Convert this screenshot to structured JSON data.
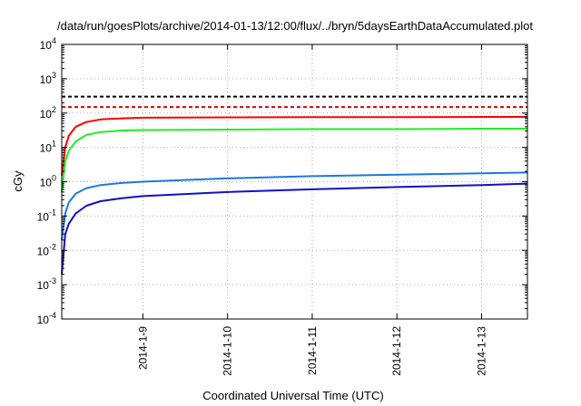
{
  "chart_data": {
    "type": "line",
    "title": "/data/run/goesPlots/archive/2014-01-13/12:00/flux/../bryn/5daysEarthDataAccumulated.plot",
    "xlabel": "Coordinated Universal Time (UTC)",
    "ylabel": "cGy",
    "y_scale": "log",
    "ylim": [
      0.0001,
      10000
    ],
    "xlim": [
      "2014-01-08T01:00",
      "2014-01-13T13:00"
    ],
    "grid": true,
    "grid_style": "dotted",
    "x_ticks": [
      {
        "x": "2014-01-09T00:00",
        "label": "2014-1-9"
      },
      {
        "x": "2014-01-10T00:00",
        "label": "2014-1-10"
      },
      {
        "x": "2014-01-11T00:00",
        "label": "2014-1-11"
      },
      {
        "x": "2014-01-12T00:00",
        "label": "2014-1-12"
      },
      {
        "x": "2014-01-13T00:00",
        "label": "2014-1-13"
      }
    ],
    "y_ticks": [
      {
        "value": 0.0001,
        "base": "10",
        "exp": "-4"
      },
      {
        "value": 0.001,
        "base": "10",
        "exp": "-3"
      },
      {
        "value": 0.01,
        "base": "10",
        "exp": "-2"
      },
      {
        "value": 0.1,
        "base": "10",
        "exp": "-1"
      },
      {
        "value": 1,
        "base": "10",
        "exp": "0"
      },
      {
        "value": 10,
        "base": "10",
        "exp": "1"
      },
      {
        "value": 100,
        "base": "10",
        "exp": "2"
      },
      {
        "value": 1000,
        "base": "10",
        "exp": "3"
      },
      {
        "value": 10000,
        "base": "10",
        "exp": "4"
      }
    ],
    "thresholds": [
      {
        "value": 300,
        "color": "#000000",
        "style": "dashed"
      },
      {
        "value": 150,
        "color": "#e00000",
        "style": "dashed"
      }
    ],
    "series": [
      {
        "color": "#ff0000",
        "points": [
          {
            "x": "2014-01-08T01:00",
            "y": 1.5
          },
          {
            "x": "2014-01-08T02:00",
            "y": 10
          },
          {
            "x": "2014-01-08T03:00",
            "y": 22
          },
          {
            "x": "2014-01-08T05:00",
            "y": 40
          },
          {
            "x": "2014-01-08T08:00",
            "y": 55
          },
          {
            "x": "2014-01-08T12:00",
            "y": 65
          },
          {
            "x": "2014-01-08T18:00",
            "y": 70
          },
          {
            "x": "2014-01-09T00:00",
            "y": 73
          },
          {
            "x": "2014-01-10T00:00",
            "y": 75
          },
          {
            "x": "2014-01-11T00:00",
            "y": 76
          },
          {
            "x": "2014-01-12T00:00",
            "y": 76
          },
          {
            "x": "2014-01-13T00:00",
            "y": 77
          },
          {
            "x": "2014-01-13T13:00",
            "y": 77
          }
        ]
      },
      {
        "color": "#22ee22",
        "points": [
          {
            "x": "2014-01-08T01:00",
            "y": 0.5
          },
          {
            "x": "2014-01-08T02:00",
            "y": 4
          },
          {
            "x": "2014-01-08T03:00",
            "y": 8
          },
          {
            "x": "2014-01-08T05:00",
            "y": 15
          },
          {
            "x": "2014-01-08T08:00",
            "y": 23
          },
          {
            "x": "2014-01-08T12:00",
            "y": 28
          },
          {
            "x": "2014-01-08T18:00",
            "y": 31
          },
          {
            "x": "2014-01-09T00:00",
            "y": 32
          },
          {
            "x": "2014-01-10T00:00",
            "y": 33
          },
          {
            "x": "2014-01-11T00:00",
            "y": 34
          },
          {
            "x": "2014-01-12T00:00",
            "y": 34
          },
          {
            "x": "2014-01-13T00:00",
            "y": 35
          },
          {
            "x": "2014-01-13T13:00",
            "y": 35
          }
        ]
      },
      {
        "color": "#1a78e0",
        "points": [
          {
            "x": "2014-01-08T01:00",
            "y": 0.02
          },
          {
            "x": "2014-01-08T02:00",
            "y": 0.12
          },
          {
            "x": "2014-01-08T03:00",
            "y": 0.25
          },
          {
            "x": "2014-01-08T05:00",
            "y": 0.45
          },
          {
            "x": "2014-01-08T08:00",
            "y": 0.65
          },
          {
            "x": "2014-01-08T12:00",
            "y": 0.8
          },
          {
            "x": "2014-01-08T18:00",
            "y": 0.92
          },
          {
            "x": "2014-01-09T00:00",
            "y": 1.0
          },
          {
            "x": "2014-01-10T00:00",
            "y": 1.25
          },
          {
            "x": "2014-01-11T00:00",
            "y": 1.45
          },
          {
            "x": "2014-01-12T00:00",
            "y": 1.6
          },
          {
            "x": "2014-01-13T00:00",
            "y": 1.75
          },
          {
            "x": "2014-01-13T13:00",
            "y": 1.85
          }
        ]
      },
      {
        "color": "#1010c8",
        "points": [
          {
            "x": "2014-01-08T01:00",
            "y": 0.002
          },
          {
            "x": "2014-01-08T02:00",
            "y": 0.03
          },
          {
            "x": "2014-01-08T03:00",
            "y": 0.06
          },
          {
            "x": "2014-01-08T05:00",
            "y": 0.12
          },
          {
            "x": "2014-01-08T08:00",
            "y": 0.2
          },
          {
            "x": "2014-01-08T12:00",
            "y": 0.27
          },
          {
            "x": "2014-01-08T18:00",
            "y": 0.33
          },
          {
            "x": "2014-01-09T00:00",
            "y": 0.38
          },
          {
            "x": "2014-01-10T00:00",
            "y": 0.5
          },
          {
            "x": "2014-01-11T00:00",
            "y": 0.6
          },
          {
            "x": "2014-01-12T00:00",
            "y": 0.7
          },
          {
            "x": "2014-01-13T00:00",
            "y": 0.8
          },
          {
            "x": "2014-01-13T13:00",
            "y": 0.88
          }
        ]
      }
    ]
  }
}
